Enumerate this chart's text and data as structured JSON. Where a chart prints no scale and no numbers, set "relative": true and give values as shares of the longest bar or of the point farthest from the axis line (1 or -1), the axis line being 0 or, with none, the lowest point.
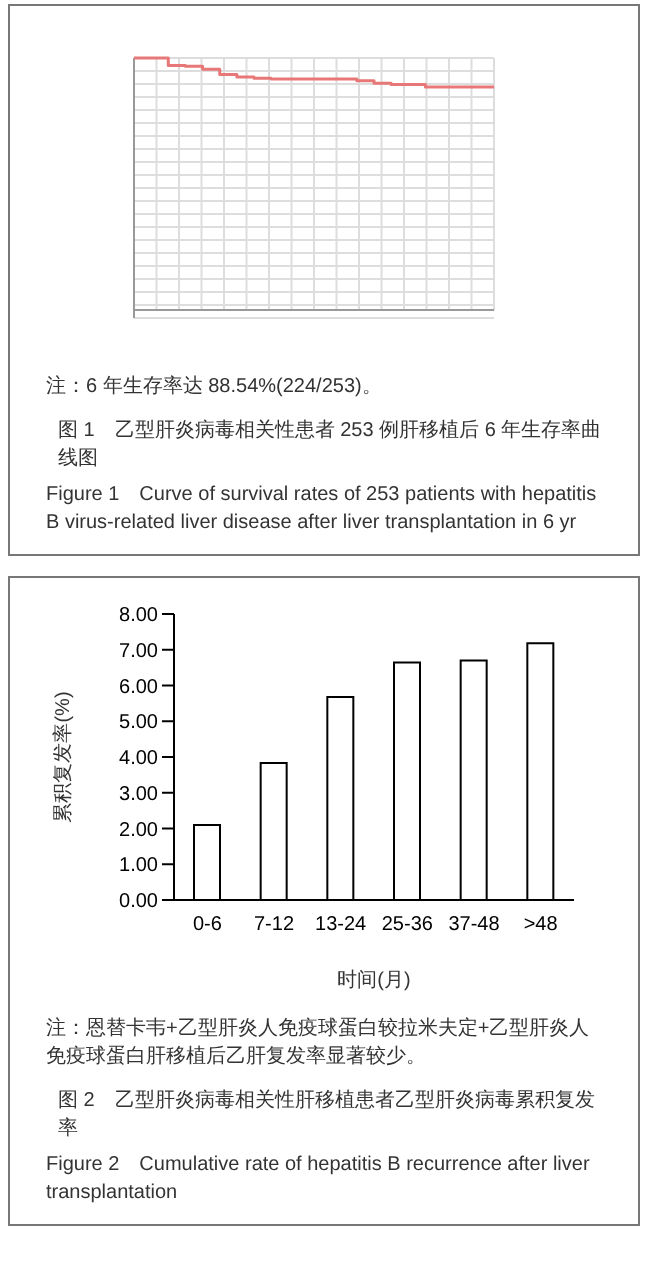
{
  "chart_data": [
    {
      "type": "step",
      "title": "图 1　乙型肝炎病毒相关性患者 253 例肝移植后 6 年生存率曲线图",
      "subtitle": "Figure 1　Curve of survival rates of 253 patients with hepatitis B virus-related liver disease after liver transplantation in 6 yr",
      "annotations": [
        "注：6 年生存率达 88.54%(224/253)。"
      ],
      "relative": true,
      "grid": true,
      "categories": [
        null,
        null,
        null,
        null,
        null,
        null,
        null,
        null,
        null,
        null,
        null,
        null,
        null,
        null,
        null,
        null,
        null,
        null,
        null,
        null,
        null,
        null
      ],
      "series": [
        {
          "color": "#e87878",
          "values": [
            1,
            1,
            0.97,
            0.967,
            0.955,
            0.935,
            0.925,
            0.92,
            0.917,
            0.917,
            0.917,
            0.917,
            0.917,
            0.91,
            0.9,
            0.895,
            0.895,
            0.885,
            0.885,
            0.885,
            0.885,
            0.885
          ]
        }
      ]
    },
    {
      "type": "bar",
      "title": "图 2　乙型肝炎病毒相关性肝移植患者乙型肝炎病毒累积复发率",
      "subtitle": "Figure 2　Cumulative rate of hepatitis B recurrence after liver transplantation",
      "annotations": [
        "注：恩替卡韦+乙型肝炎人免疫球蛋白较拉米夫定+乙型肝炎人免疫球蛋白肝移植后乙肝复发率显著较少。"
      ],
      "xlabel": "时间(月)",
      "ylabel": "累积复发率(%)",
      "categories": [
        "0-6",
        "7-12",
        "13-24",
        "25-36",
        "37-48",
        ">48"
      ],
      "values": [
        2.1,
        3.83,
        5.68,
        6.64,
        6.7,
        7.18
      ],
      "color": "#ffffff",
      "ylim": [
        0,
        8
      ],
      "yticks": [
        {
          "value": 0,
          "label": "0.00"
        },
        {
          "value": 1,
          "label": "1.00"
        },
        {
          "value": 2,
          "label": "2.00"
        },
        {
          "value": 3,
          "label": "3.00"
        },
        {
          "value": 4,
          "label": "4.00"
        },
        {
          "value": 5,
          "label": "5.00"
        },
        {
          "value": 6,
          "label": "6.00"
        },
        {
          "value": 7,
          "label": "7.00"
        },
        {
          "value": 8,
          "label": "8.00"
        }
      ],
      "grid": false
    }
  ]
}
